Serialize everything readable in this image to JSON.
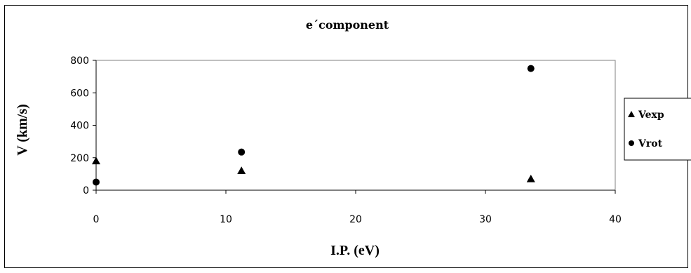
{
  "chart_data": {
    "type": "scatter",
    "title": "e´component",
    "xlabel": "I.P. (eV)",
    "ylabel": "V (km/s)",
    "xlim": [
      0,
      40
    ],
    "ylim": [
      0,
      800
    ],
    "xticks": [
      "0",
      "10",
      "20",
      "30",
      "40"
    ],
    "yticks": [
      "0",
      "200",
      "400",
      "600",
      "800"
    ],
    "grid": false,
    "legend_position": "right",
    "series": [
      {
        "name": "Vexp",
        "marker": "triangle",
        "color": "#000000",
        "points": [
          [
            0,
            180
          ],
          [
            11.2,
            120
          ],
          [
            33.5,
            70
          ]
        ]
      },
      {
        "name": "Vrot",
        "marker": "circle",
        "color": "#000000",
        "points": [
          [
            0,
            50
          ],
          [
            11.2,
            235
          ],
          [
            33.5,
            750
          ]
        ]
      }
    ]
  }
}
